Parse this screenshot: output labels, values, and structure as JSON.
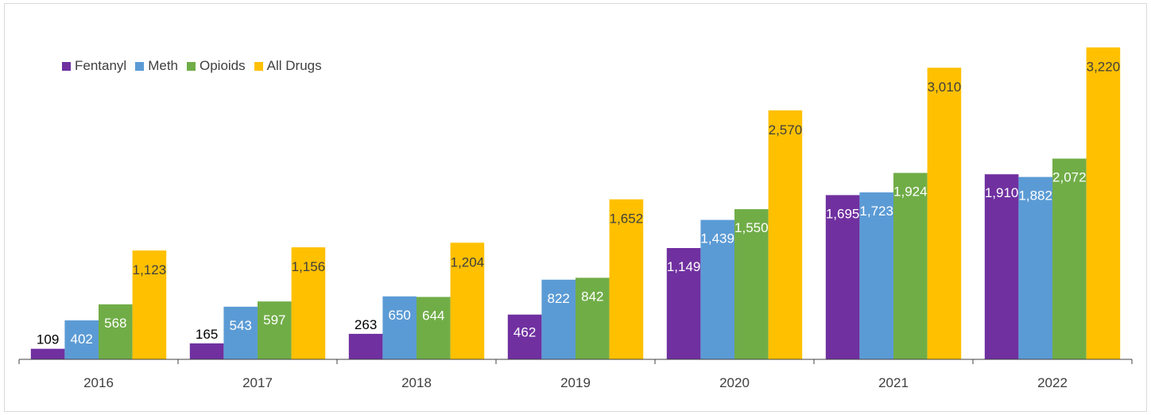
{
  "chart_data": {
    "type": "bar",
    "categories": [
      "2016",
      "2017",
      "2018",
      "2019",
      "2020",
      "2021",
      "2022"
    ],
    "series": [
      {
        "name": "Fentanyl",
        "color": "#7030a0",
        "values": [
          109,
          165,
          263,
          462,
          1149,
          1695,
          1910
        ],
        "labels": [
          "109",
          "165",
          "263",
          "462",
          "1,149",
          "1,695",
          "1,910"
        ]
      },
      {
        "name": "Meth",
        "color": "#5b9bd5",
        "values": [
          402,
          543,
          650,
          822,
          1439,
          1723,
          1882
        ],
        "labels": [
          "402",
          "543",
          "650",
          "822",
          "1,439",
          "1,723",
          "1,882"
        ]
      },
      {
        "name": "Opioids",
        "color": "#70ad47",
        "values": [
          568,
          597,
          644,
          842,
          1550,
          1924,
          2072
        ],
        "labels": [
          "568",
          "597",
          "644",
          "842",
          "1,550",
          "1,924",
          "2,072"
        ]
      },
      {
        "name": "All Drugs",
        "color": "#ffc000",
        "values": [
          1123,
          1156,
          1204,
          1652,
          2570,
          3010,
          3220
        ],
        "labels": [
          "1,123",
          "1,156",
          "1,204",
          "1,652",
          "2,570",
          "3,010",
          "3,220"
        ]
      }
    ],
    "title": "",
    "xlabel": "",
    "ylabel": "",
    "ylim": [
      0,
      3500
    ],
    "grid": false,
    "legend_position": "top-left"
  }
}
